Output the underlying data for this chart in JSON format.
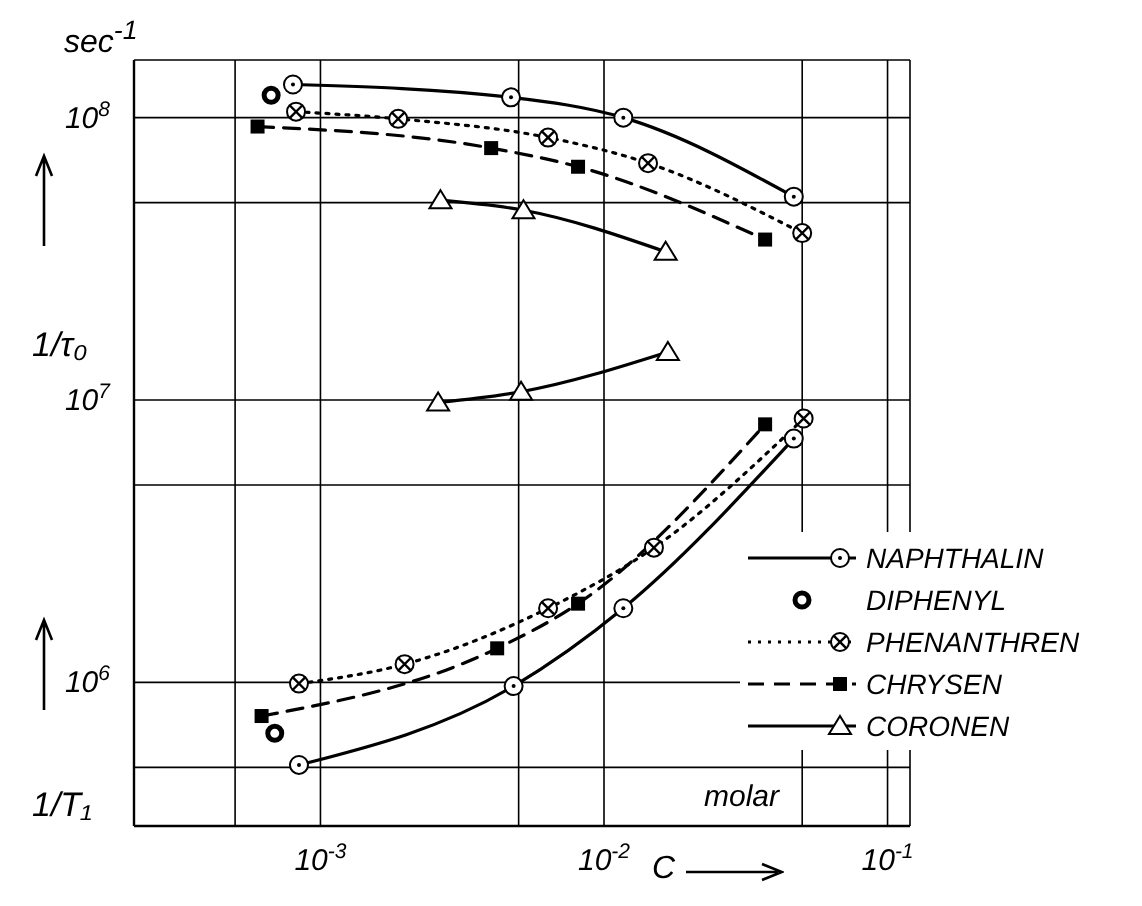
{
  "chart_data": {
    "type": "line",
    "xlabel": "C",
    "ylabel": "sec$^{-1}$",
    "annotations": [
      "1/τ₀",
      "1/T₁",
      "molar"
    ],
    "log": "xy",
    "grid": true,
    "legend": "right",
    "xlim": [
      0.00022,
      0.12
    ],
    "ylim": [
      310000,
      160000000
    ],
    "xticks": [
      {
        "value": 0.0005,
        "label": null
      },
      {
        "value": 0.001,
        "label": "10$^{-3}$"
      },
      {
        "value": 0.005,
        "label": null
      },
      {
        "value": 0.01,
        "label": "10$^{-2}$"
      },
      {
        "value": 0.05,
        "label": null
      },
      {
        "value": 0.1,
        "label": "10$^{-1}$"
      }
    ],
    "yticks": [
      {
        "value": 500000,
        "label": null
      },
      {
        "value": 1000000,
        "label": "10$^{6}$"
      },
      {
        "value": 5000000,
        "label": null
      },
      {
        "value": 10000000,
        "label": "10$^{7}$"
      },
      {
        "value": 50000000,
        "label": null
      },
      {
        "value": 100000000,
        "label": "10$^{8}$"
      }
    ],
    "series": [
      {
        "name": "NAPHTHALIN",
        "color": "#000000",
        "marker": "circle",
        "line_style": "solid",
        "x": [
          0.0008,
          0.0047,
          0.0117,
          0.0467
        ],
        "values": [
          131000000,
          118000000,
          100000000,
          52500000
        ]
      },
      {
        "name": "DIPHENYL",
        "type": "scatter",
        "color": "#000000",
        "marker": "circle",
        "x": [
          0.00067,
          0.00069
        ],
        "values": [
          120000000,
          660000
        ]
      },
      {
        "name": "PHENANTHREN",
        "color": "#000000",
        "marker": "circle",
        "line_style": "dotted",
        "x": [
          0.00082,
          0.00188,
          0.00635,
          0.0143,
          0.05
        ],
        "values": [
          105000000,
          99000000,
          85000000,
          69000000,
          39000000
        ]
      },
      {
        "name": "CHRYSEN",
        "color": "#000000",
        "marker": "square",
        "line_style": "dashed",
        "x": [
          0.0006,
          0.004,
          0.0081,
          0.037
        ],
        "values": [
          93000000,
          78000000,
          67000000,
          37000000
        ]
      },
      {
        "name": "CORONEN",
        "color": "#000000",
        "marker": "triangle",
        "line_style": "solid",
        "x": [
          0.00265,
          0.0052,
          0.0165
        ],
        "values": [
          51000000,
          47000000,
          33500000
        ]
      },
      {
        "color": "#000000",
        "marker": "circle",
        "line_style": "solid",
        "x": [
          0.00084,
          0.0048,
          0.0117,
          0.0467
        ],
        "values": [
          510000,
          970000,
          1830000,
          7300000
        ]
      },
      {
        "color": "#000000",
        "marker": "circle",
        "line_style": "dotted",
        "x": [
          0.00084,
          0.00198,
          0.00635,
          0.015,
          0.0506
        ],
        "values": [
          990000,
          1160000,
          1830000,
          3000000,
          8600000
        ]
      },
      {
        "color": "#000000",
        "marker": "square",
        "line_style": "dashed",
        "x": [
          0.00062,
          0.0042,
          0.0081,
          0.037
        ],
        "values": [
          760000,
          1320000,
          1900000,
          8200000
        ]
      },
      {
        "color": "#000000",
        "marker": "triangle",
        "line_style": "solid",
        "x": [
          0.0026,
          0.0051,
          0.0168
        ],
        "values": [
          9800000,
          10700000,
          14800000
        ]
      }
    ]
  }
}
